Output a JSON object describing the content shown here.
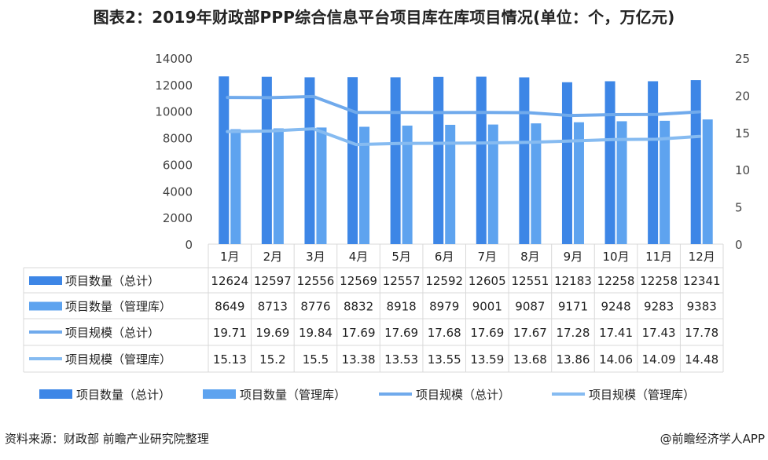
{
  "title": "图表2：2019年财政部PPP综合信息平台项目库在库项目情况(单位：个，万亿元)",
  "source": "资料来源：财政部 前瞻产业研究院整理",
  "credit": "@前瞻经济学人APP",
  "colors": {
    "bar_total": "#3d86e6",
    "bar_mgmt": "#5ea3ef",
    "line_total": "#70aaec",
    "line_mgmt": "#86bbf1",
    "grid": "#d9d9d9",
    "axis_text": "#444444"
  },
  "chart_data": {
    "type": "bar+line",
    "categories": [
      "1月",
      "2月",
      "3月",
      "4月",
      "5月",
      "6月",
      "7月",
      "8月",
      "9月",
      "10月",
      "11月",
      "12月"
    ],
    "y_left": {
      "min": 0,
      "max": 14000,
      "step": 2000,
      "ticks": [
        "0",
        "2000",
        "4000",
        "6000",
        "8000",
        "10000",
        "12000",
        "14000"
      ]
    },
    "y_right": {
      "min": 0,
      "max": 25,
      "step": 5,
      "ticks": [
        "0",
        "5",
        "10",
        "15",
        "20",
        "25"
      ]
    },
    "series": [
      {
        "name": "项目数量（总计）",
        "kind": "bar",
        "axis": "left",
        "values": [
          12624,
          12597,
          12556,
          12569,
          12557,
          12592,
          12605,
          12551,
          12183,
          12258,
          12258,
          12341
        ],
        "labels": [
          "12624",
          "12597",
          "12556",
          "12569",
          "12557",
          "12592",
          "12605",
          "12551",
          "12183",
          "12258",
          "12258",
          "12341"
        ]
      },
      {
        "name": "项目数量（管理库）",
        "kind": "bar",
        "axis": "left",
        "values": [
          8649,
          8713,
          8776,
          8832,
          8918,
          8979,
          9001,
          9087,
          9171,
          9248,
          9283,
          9383
        ],
        "labels": [
          "8649",
          "8713",
          "8776",
          "8832",
          "8918",
          "8979",
          "9001",
          "9087",
          "9171",
          "9248",
          "9283",
          "9383"
        ]
      },
      {
        "name": "项目规模（总计）",
        "kind": "line",
        "axis": "right",
        "values": [
          19.71,
          19.69,
          19.84,
          17.69,
          17.69,
          17.68,
          17.69,
          17.67,
          17.28,
          17.41,
          17.43,
          17.78
        ],
        "labels": [
          "19.71",
          "19.69",
          "19.84",
          "17.69",
          "17.69",
          "17.68",
          "17.69",
          "17.67",
          "17.28",
          "17.41",
          "17.43",
          "17.78"
        ]
      },
      {
        "name": "项目规模（管理库）",
        "kind": "line",
        "axis": "right",
        "values": [
          15.13,
          15.2,
          15.5,
          13.38,
          13.53,
          13.55,
          13.59,
          13.68,
          13.86,
          14.06,
          14.09,
          14.48
        ],
        "labels": [
          "15.13",
          "15.2",
          "15.5",
          "13.38",
          "13.53",
          "13.55",
          "13.59",
          "13.68",
          "13.86",
          "14.06",
          "14.09",
          "14.48"
        ]
      }
    ],
    "legend_position": "bottom"
  }
}
